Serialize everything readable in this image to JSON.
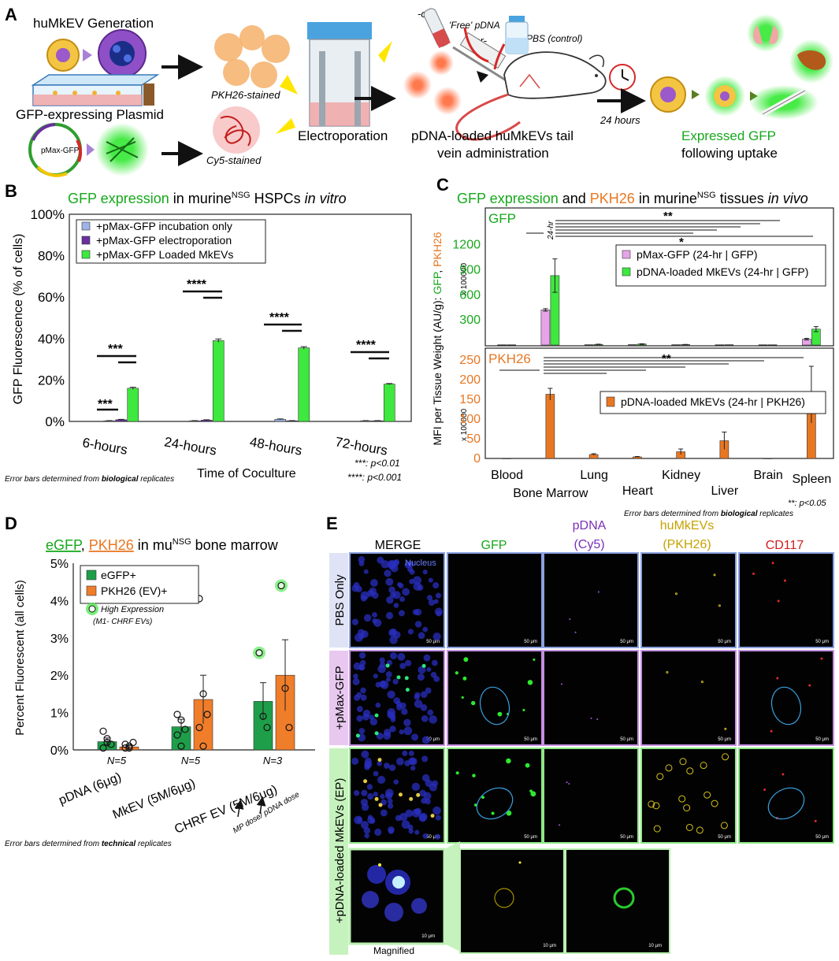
{
  "panel_a": {
    "letter": "A",
    "generation_label": "huMkEV Generation",
    "plasmid_label": "GFP-expressing Plasmid",
    "plasmid_name": "pMax-GFP",
    "pkh26_stained": "PKH26-stained",
    "cy5_stained": "Cy5-stained",
    "electroporation": "Electroporation",
    "or1": "-or-",
    "or2": "-or-",
    "free_pdna": "'Free' pDNA",
    "pbs_control": "PBS (control)",
    "admin_line1": "pDNA-loaded huMkEVs tail",
    "admin_line2": "vein administration",
    "time_24": "24 hours",
    "expressed_line1": "Expressed GFP",
    "expressed_line2": "following uptake"
  },
  "panel_b": {
    "letter": "B",
    "title_green": "GFP expression",
    "title_mid": " in murine",
    "title_sup": "NSG",
    "title_end": " HSPCs ",
    "title_italic": "in vitro",
    "note_p001": "***: p<0.01",
    "note_p0001": "****: p<0.001",
    "footnote_pre": "Error bars determined from ",
    "footnote_bold": "biological",
    "footnote_post": " replicates",
    "colors": {
      "incubation": "#9fb3e8",
      "electroporation": "#6a2fa0",
      "loaded": "#3fe83f"
    },
    "chart_data": {
      "type": "bar",
      "ylabel": "GFP Fluorescence (% of cells)",
      "xlabel": "Time of Coculture",
      "categories": [
        "6-hours",
        "24-hours",
        "48-hours",
        "72-hours"
      ],
      "yticks": [
        "0%",
        "20%",
        "40%",
        "60%",
        "80%",
        "100%"
      ],
      "ylim": [
        0,
        100
      ],
      "series": [
        {
          "name": "+pMax-GFP incubation only",
          "values": [
            0.3,
            0.3,
            1.0,
            0.3
          ],
          "errors": [
            0.1,
            0.1,
            0.2,
            0.1
          ]
        },
        {
          "name": "+pMax-GFP electroporation",
          "values": [
            0.8,
            0.6,
            0.3,
            0.3
          ],
          "errors": [
            0.2,
            0.2,
            0.1,
            0.1
          ]
        },
        {
          "name": "+pMax-GFP Loaded MkEVs",
          "values": [
            16,
            39,
            35.5,
            18
          ],
          "errors": [
            0.5,
            0.8,
            0.6,
            0.3
          ]
        }
      ],
      "significance": [
        "***",
        "***",
        "****",
        "****",
        "****"
      ]
    }
  },
  "panel_c": {
    "letter": "C",
    "title_green": "GFP expression",
    "title_and": " and ",
    "title_orange": "PKH26",
    "title_mid": " in murine",
    "title_sup": "NSG",
    "title_end": " tissues ",
    "title_italic": "in vivo",
    "ylabel_pre": "MFI per Tissue Weight (AU/g): ",
    "ylabel_gfp": "GFP",
    "ylabel_sep": ", ",
    "ylabel_pkh": "PKH26",
    "gfp_label": "GFP",
    "pkh_label": "PKH26",
    "hr24": "24-hr",
    "sig_double": "**",
    "sig_single": "*",
    "sig_lower": "**",
    "scale_top": "x 100000",
    "scale_bottom": "x 100000",
    "note": "**: p<0.05",
    "footnote_pre": "Error bars determined from ",
    "footnote_bold": "biological",
    "footnote_post": " replicates",
    "colors": {
      "pmax": "#e6a4e8",
      "pdna": "#3fe83f",
      "pkh": "#e87722"
    },
    "chart_data": [
      {
        "type": "bar",
        "categories": [
          "Blood",
          "Bone Marrow",
          "Lung",
          "Heart",
          "Kidney",
          "Liver",
          "Brain",
          "Spleen"
        ],
        "yticks": [
          "300",
          "600",
          "900",
          "1200"
        ],
        "ylim": [
          0,
          1300
        ],
        "series": [
          {
            "name": "pMax-GFP (24-hr | GFP)",
            "values": [
              3,
              420,
              4,
              5,
              4,
              3,
              3,
              70
            ],
            "errors": [
              0,
              15,
              0,
              0,
              0,
              0,
              0,
              10
            ]
          },
          {
            "name": "pDNA-loaded MkEVs (24-hr | GFP)",
            "values": [
              3,
              830,
              8,
              12,
              6,
              4,
              3,
              190
            ],
            "errors": [
              0,
              200,
              2,
              3,
              1,
              0,
              0,
              30
            ]
          }
        ]
      },
      {
        "type": "bar",
        "categories": [
          "Blood",
          "Bone Marrow",
          "Lung",
          "Heart",
          "Kidney",
          "Liver",
          "Brain",
          "Spleen"
        ],
        "yticks": [
          "0",
          "50",
          "100",
          "150",
          "200",
          "250"
        ],
        "ylim": [
          0,
          260
        ],
        "series": [
          {
            "name": "pDNA-loaded MkEVs (24-hr | PKH26)",
            "values": [
              0,
              163,
              10,
              4,
              17,
              45,
              0,
              162
            ],
            "errors": [
              0,
              15,
              2,
              1,
              7,
              22,
              0,
              72
            ]
          }
        ]
      }
    ]
  },
  "panel_d": {
    "letter": "D",
    "title_a": "eGFP",
    "title_comma": ", ",
    "title_b": "PKH26",
    "title_mid": " in mu",
    "title_sup": "NSG",
    "title_end": " bone marrow",
    "legend_high": "High Expression",
    "legend_high_sub": "(M1- CHRF EVs)",
    "n_labels": [
      "N=5",
      "N=5",
      "N=3"
    ],
    "dose_note": "MP dose/ pDNA dose",
    "footnote_pre": "Error bars determined from ",
    "footnote_bold": "technical",
    "footnote_post": " replicates",
    "colors": {
      "egfp": "#1f9e4a",
      "pkh": "#f07d2a"
    },
    "chart_data": {
      "type": "bar",
      "ylabel": "Percent Fluorescent (all cells)",
      "categories": [
        "pDNA (6μg)",
        "MkEV (5M/6μg)",
        "CHRF EV (5M/6μg)"
      ],
      "yticks": [
        "0%",
        "1%",
        "2%",
        "3%",
        "4%",
        "5%"
      ],
      "ylim": [
        0,
        5
      ],
      "series": [
        {
          "name": "eGFP+",
          "values": [
            0.22,
            0.62,
            1.3
          ],
          "errors": [
            0.1,
            0.2,
            0.5
          ]
        },
        {
          "name": "PKH26 (EV)+",
          "values": [
            0.08,
            1.35,
            2.0
          ],
          "errors": [
            0.05,
            0.65,
            0.95
          ]
        }
      ],
      "points": {
        "egfp": [
          [
            0.5,
            0.3,
            0.15,
            0.05,
            0.2
          ],
          [
            0.95,
            0.8,
            0.55,
            0.4,
            0.1
          ],
          [
            2.6,
            0.9,
            0.6
          ]
        ],
        "pkh": [
          [
            0.05,
            0.1,
            0.2,
            0.15,
            0.05
          ],
          [
            4.05,
            1.5,
            0.95,
            0.6,
            0.1
          ],
          [
            4.4,
            1.65,
            0.6
          ]
        ]
      }
    }
  },
  "panel_e": {
    "letter": "E",
    "col_headers": [
      "MERGE",
      "GFP",
      "pDNA",
      "huMkEVs",
      "CD117"
    ],
    "col_sub": [
      "",
      "",
      "(Cy5)",
      "(PKH26)",
      ""
    ],
    "row_labels": [
      "PBS Only",
      "+pMax-GFP",
      "+pDNA-loaded MkEVs (EP)"
    ],
    "nucleus_label": "Nucleus",
    "scale_50": "50 μm",
    "scale_10": "10 μm",
    "magnified": "Magnified"
  }
}
